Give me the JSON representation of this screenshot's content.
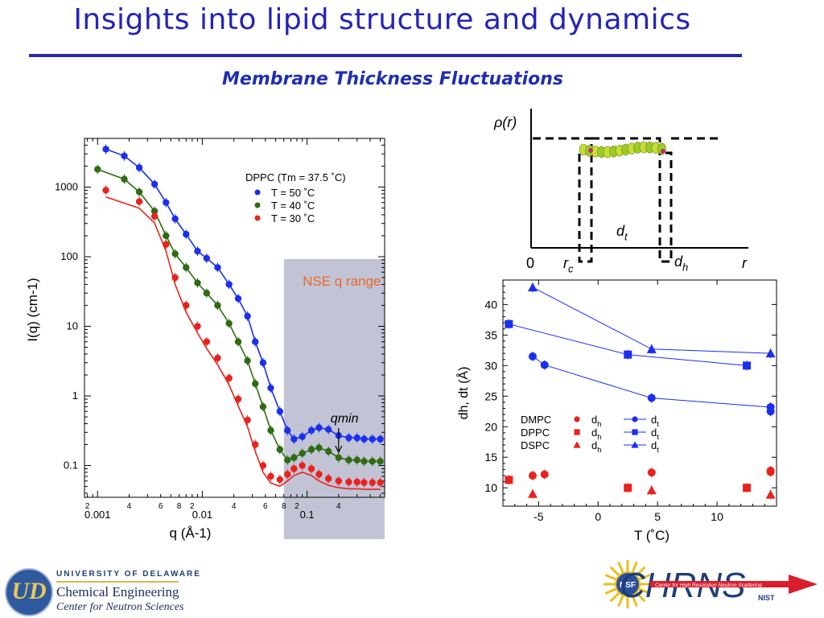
{
  "header": {
    "title": "Insights into lipid structure and dynamics",
    "subtitle": "Membrane Thickness Fluctuations"
  },
  "footer": {
    "university": "UNIVERSITY OF DELAWARE",
    "department": "Chemical Engineering",
    "center": "Center for Neutron Sciences",
    "logo_letters": "UD",
    "chrns_text": "CHRNS",
    "nsf_text": "NSF",
    "chrns_caption": "Center for High Resolution Neutron Scattering",
    "nist_text": "NIST"
  },
  "colors": {
    "title": "#2424b8",
    "blue": "#1a2ff0",
    "green": "#2e6b12",
    "red": "#e8221c",
    "shade": "#c2c4d6",
    "nse_text": "#e8682a"
  },
  "chart_data": [
    {
      "type": "scatter",
      "xscale": "log",
      "yscale": "log",
      "xlabel": "q (Å-1)",
      "ylabel": "I(q) (cm-1)",
      "xlim": [
        0.00075,
        0.55
      ],
      "ylim": [
        0.035,
        5000
      ],
      "x_ticks": [
        0.001,
        0.01,
        0.1
      ],
      "x_tick_labels": [
        "0.001",
        "0.01",
        "0.1"
      ],
      "x_minor_labels": [
        "2",
        "4",
        "6",
        "8",
        "2",
        "4",
        "6",
        "8",
        "2",
        "4"
      ],
      "y_ticks": [
        1000,
        100,
        10,
        1,
        0.1
      ],
      "y_tick_labels": [
        "1000",
        "100",
        "10",
        "1",
        "0.1"
      ],
      "legend_title": "DPPC (Tm = 37.5 ˚C)",
      "legend_position": "top-right",
      "shaded_region": {
        "x": [
          0.06,
          0.55
        ],
        "label": "NSE q range"
      },
      "annotation": "qmin",
      "annotation_x": 0.2,
      "series": [
        {
          "name": "T = 50 ˚C",
          "color": "blue",
          "x": [
            0.0012,
            0.0018,
            0.0025,
            0.0035,
            0.0045,
            0.0055,
            0.007,
            0.009,
            0.011,
            0.014,
            0.018,
            0.022,
            0.027,
            0.032,
            0.038,
            0.045,
            0.055,
            0.065,
            0.075,
            0.09,
            0.11,
            0.13,
            0.16,
            0.2,
            0.25,
            0.3,
            0.35,
            0.42,
            0.5
          ],
          "y": [
            3500,
            2800,
            1900,
            1100,
            600,
            350,
            210,
            120,
            95,
            70,
            40,
            25,
            14,
            6,
            3,
            1.3,
            0.6,
            0.32,
            0.24,
            0.26,
            0.32,
            0.35,
            0.33,
            0.27,
            0.25,
            0.25,
            0.24,
            0.24,
            0.24
          ]
        },
        {
          "name": "T = 40 ˚C",
          "color": "green",
          "x": [
            0.001,
            0.0018,
            0.0025,
            0.0035,
            0.0045,
            0.0055,
            0.007,
            0.009,
            0.011,
            0.014,
            0.018,
            0.022,
            0.027,
            0.032,
            0.038,
            0.045,
            0.055,
            0.065,
            0.075,
            0.09,
            0.11,
            0.13,
            0.16,
            0.2,
            0.25,
            0.3,
            0.35,
            0.42,
            0.5
          ],
          "y": [
            1800,
            1300,
            850,
            450,
            200,
            110,
            70,
            42,
            30,
            20,
            11,
            6,
            3.2,
            1.5,
            0.7,
            0.32,
            0.17,
            0.12,
            0.13,
            0.15,
            0.17,
            0.18,
            0.16,
            0.13,
            0.12,
            0.12,
            0.115,
            0.115,
            0.115
          ]
        },
        {
          "name": "T = 30 ˚C",
          "color": "red",
          "x": [
            0.0012,
            0.0025,
            0.0035,
            0.0045,
            0.0055,
            0.007,
            0.009,
            0.011,
            0.014,
            0.018,
            0.022,
            0.027,
            0.032,
            0.038,
            0.045,
            0.055,
            0.065,
            0.075,
            0.09,
            0.11,
            0.13,
            0.16,
            0.2,
            0.25,
            0.3,
            0.35,
            0.42,
            0.5
          ],
          "y": [
            900,
            620,
            380,
            150,
            50,
            20,
            10,
            6,
            3.5,
            1.8,
            0.9,
            0.45,
            0.2,
            0.1,
            0.07,
            0.063,
            0.075,
            0.09,
            0.1,
            0.09,
            0.075,
            0.065,
            0.06,
            0.058,
            0.058,
            0.057,
            0.057,
            0.057
          ]
        }
      ]
    },
    {
      "type": "line",
      "xlabel": "T (˚C)",
      "ylabel": "dh, dt (Å)",
      "xlim": [
        -8,
        15
      ],
      "ylim": [
        7,
        44
      ],
      "x_ticks": [
        -5,
        0,
        5,
        10
      ],
      "y_ticks": [
        10,
        15,
        20,
        25,
        30,
        35,
        40
      ],
      "legend_position": "bottom-left",
      "legend": [
        {
          "lipid": "DMPC",
          "dh": "dh",
          "dt": "dt",
          "marker": "circle"
        },
        {
          "lipid": "DPPC",
          "dh": "dh",
          "dt": "dt",
          "marker": "square"
        },
        {
          "lipid": "DSPC",
          "dh": "dh",
          "dt": "dt",
          "marker": "triangle"
        }
      ],
      "series": [
        {
          "name": "DMPC dt",
          "marker": "circle",
          "color": "blue",
          "x": [
            -5.5,
            -4.5,
            4.5,
            14.5,
            14.5
          ],
          "y": [
            31.5,
            30.1,
            24.7,
            23.2,
            22.5
          ]
        },
        {
          "name": "DPPC dt",
          "marker": "square",
          "color": "blue",
          "x": [
            -7.5,
            2.5,
            12.5
          ],
          "y": [
            36.8,
            31.8,
            30.0
          ]
        },
        {
          "name": "DSPC dt",
          "marker": "triangle",
          "color": "blue",
          "x": [
            -5.5,
            4.5,
            14.5
          ],
          "y": [
            42.8,
            32.7,
            32.0
          ]
        },
        {
          "name": "DMPC dh",
          "marker": "circle",
          "color": "red",
          "x": [
            -5.5,
            -4.5,
            4.5,
            14.5,
            14.5
          ],
          "y": [
            12.0,
            12.2,
            12.5,
            12.8,
            12.6
          ]
        },
        {
          "name": "DPPC dh",
          "marker": "square",
          "color": "red",
          "x": [
            -7.5,
            2.5,
            12.5
          ],
          "y": [
            11.3,
            10.0,
            10.0
          ]
        },
        {
          "name": "DSPC dh",
          "marker": "triangle",
          "color": "red",
          "x": [
            -5.5,
            4.5,
            14.5
          ],
          "y": [
            9.0,
            9.6,
            8.9
          ]
        }
      ]
    },
    {
      "type": "diagram",
      "ylabel": "ρ(r)",
      "xlabel": "r",
      "origin_label": "0",
      "labels": {
        "rc": "rc",
        "dh": "dh",
        "dt": "dt"
      }
    }
  ]
}
